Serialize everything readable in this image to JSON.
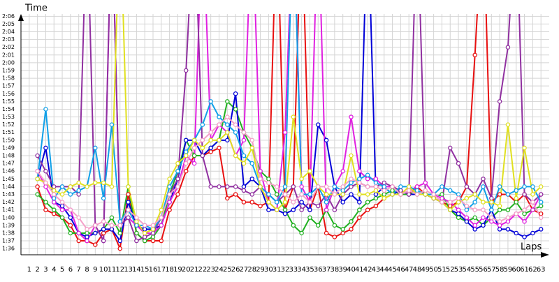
{
  "chart_data": {
    "type": "line",
    "y_label": "Time",
    "x_label": "Laps",
    "x": [
      1,
      2,
      3,
      4,
      5,
      6,
      7,
      8,
      9,
      10,
      11,
      12,
      13,
      14,
      15,
      16,
      17,
      18,
      19,
      20,
      21,
      22,
      23,
      24,
      25,
      26,
      27,
      28,
      29,
      30,
      31,
      32,
      33,
      34,
      35,
      36,
      37,
      38,
      39,
      40,
      41,
      42,
      43,
      44,
      45,
      46,
      47,
      48,
      49,
      50,
      51,
      52,
      53,
      54,
      55,
      56,
      57,
      58,
      59,
      60,
      61,
      62,
      63
    ],
    "xlim": [
      0,
      64
    ],
    "xticks": [
      1,
      2,
      3,
      4,
      5,
      6,
      7,
      8,
      9,
      10,
      11,
      12,
      13,
      14,
      15,
      16,
      17,
      18,
      19,
      20,
      21,
      22,
      23,
      24,
      25,
      26,
      27,
      28,
      29,
      30,
      31,
      32,
      33,
      34,
      35,
      36,
      37,
      38,
      39,
      40,
      41,
      42,
      43,
      44,
      45,
      46,
      47,
      48,
      49,
      50,
      51,
      52,
      53,
      54,
      55,
      56,
      57,
      58,
      59,
      60,
      61,
      62,
      63
    ],
    "ylim": [
      95.2,
      126.3
    ],
    "yticks": [
      {
        "value": 96,
        "label": "1:36"
      },
      {
        "value": 97,
        "label": "1:37"
      },
      {
        "value": 98,
        "label": "1:38"
      },
      {
        "value": 99,
        "label": "1:39"
      },
      {
        "value": 100,
        "label": "1:40"
      },
      {
        "value": 101,
        "label": "1:41"
      },
      {
        "value": 102,
        "label": "1:42"
      },
      {
        "value": 103,
        "label": "1:43"
      },
      {
        "value": 104,
        "label": "1:44"
      },
      {
        "value": 105,
        "label": "1:45"
      },
      {
        "value": 106,
        "label": "1:46"
      },
      {
        "value": 107,
        "label": "1:47"
      },
      {
        "value": 108,
        "label": "1:48"
      },
      {
        "value": 109,
        "label": "1:49"
      },
      {
        "value": 110,
        "label": "1:50"
      },
      {
        "value": 111,
        "label": "1:51"
      },
      {
        "value": 112,
        "label": "1:52"
      },
      {
        "value": 113,
        "label": "1:53"
      },
      {
        "value": 114,
        "label": "1:54"
      },
      {
        "value": 115,
        "label": "1:55"
      },
      {
        "value": 116,
        "label": "1:56"
      },
      {
        "value": 117,
        "label": "1:57"
      },
      {
        "value": 118,
        "label": "1:58"
      },
      {
        "value": 119,
        "label": "1:59"
      },
      {
        "value": 120,
        "label": "2:00"
      },
      {
        "value": 121,
        "label": "2:01"
      },
      {
        "value": 122,
        "label": "2:02"
      },
      {
        "value": 123,
        "label": "2:03"
      },
      {
        "value": 124,
        "label": "2:04"
      },
      {
        "value": 125,
        "label": "2:05"
      },
      {
        "value": 126,
        "label": "2:06"
      }
    ],
    "grid": true,
    "series": [
      {
        "color": "#e81010",
        "values": [
          null,
          104,
          101,
          100.5,
          100,
          99,
          97,
          97,
          96.5,
          98,
          98.5,
          96,
          103,
          98,
          97,
          97,
          97,
          101,
          103,
          106,
          108,
          108,
          108.5,
          109,
          102.5,
          103,
          102,
          102,
          101.5,
          102,
          140,
          101,
          104,
          140,
          101,
          104,
          98,
          97.5,
          98,
          98.5,
          100,
          101,
          101.5,
          102.5,
          103,
          103,
          103,
          104,
          103,
          102.5,
          102,
          101.5,
          102,
          104,
          121,
          140,
          102,
          103,
          103,
          102,
          103,
          101,
          100.5
        ]
      },
      {
        "color": "#20b020",
        "values": [
          null,
          103,
          102,
          101,
          100,
          98,
          98,
          98,
          98,
          98.5,
          100,
          98,
          104,
          98,
          97,
          97.5,
          99,
          103,
          106,
          110,
          108,
          108,
          109,
          110,
          115,
          114,
          111,
          109,
          106,
          105,
          103,
          101,
          99,
          98,
          100,
          99,
          101,
          99,
          98.5,
          99.5,
          101,
          102,
          102.5,
          103,
          103.5,
          103,
          103,
          103.5,
          103,
          102.5,
          103,
          101,
          100,
          99.5,
          100,
          99,
          100,
          101,
          101,
          102,
          100.5,
          101,
          101.5
        ]
      },
      {
        "color": "#0000d8",
        "values": [
          null,
          105,
          109,
          102,
          101.5,
          100,
          98,
          97.5,
          98,
          98.5,
          98.5,
          97,
          102,
          99,
          98.5,
          98.5,
          99,
          102,
          105,
          110,
          110,
          108,
          109,
          110,
          110,
          116,
          104,
          105,
          104,
          101,
          101,
          100.5,
          101,
          102,
          101,
          112,
          110,
          104,
          102,
          103,
          102,
          140,
          103,
          104,
          103,
          103.5,
          103,
          103,
          103,
          102.5,
          102,
          101,
          100.5,
          99.5,
          98.5,
          99,
          101,
          98.5,
          98.5,
          98,
          97.5,
          98,
          98.5
        ]
      },
      {
        "color": "#e020e0",
        "values": [
          null,
          106,
          104,
          102,
          101,
          101,
          98,
          97,
          99,
          97,
          140,
          99,
          100,
          99,
          98,
          98,
          99,
          102,
          104,
          108,
          107,
          140,
          110,
          112,
          111,
          108,
          110,
          140,
          106,
          102,
          101,
          111,
          140,
          104,
          102,
          140,
          101,
          104,
          106,
          113,
          106,
          105,
          105,
          104,
          104,
          103,
          103.5,
          104,
          104.5,
          103,
          102.5,
          102,
          101,
          100,
          99,
          100,
          99.5,
          99,
          99.5,
          100.5,
          99.5,
          101,
          103
        ]
      },
      {
        "color": "#9030a0",
        "values": [
          null,
          108,
          106,
          104,
          104,
          104,
          103,
          140,
          99,
          97,
          140,
          99,
          100,
          97,
          97.5,
          98,
          100,
          103,
          105,
          119,
          140,
          108,
          104,
          104,
          104,
          104,
          103.5,
          103,
          104,
          103,
          102,
          103,
          104,
          101,
          102,
          101.5,
          103,
          101,
          103,
          104,
          104.5,
          104,
          104,
          104.5,
          104,
          103.5,
          103,
          140,
          103,
          102.5,
          102,
          109,
          107,
          104,
          103,
          105,
          102.5,
          115,
          122,
          140,
          103,
          102,
          103
        ]
      },
      {
        "color": "#10a0e8",
        "values": [
          null,
          105,
          114,
          102.5,
          104,
          103,
          103.5,
          104,
          109,
          102.5,
          112,
          99.5,
          101,
          99,
          99,
          98.5,
          100,
          104,
          106,
          108.5,
          110,
          112,
          115,
          113,
          112,
          111,
          108,
          107,
          104,
          103,
          102,
          104,
          140,
          103,
          103,
          104,
          102,
          104,
          103.5,
          104.5,
          105,
          105.5,
          104.5,
          104,
          103,
          104,
          104,
          103.5,
          103,
          103,
          104,
          103.5,
          103,
          101,
          102,
          104,
          101,
          104,
          103,
          103.5,
          104,
          104,
          102
        ]
      },
      {
        "color": "#e0e020",
        "values": [
          null,
          105,
          104.5,
          103.5,
          103,
          104,
          104.5,
          104,
          104.5,
          104.5,
          104,
          140,
          104,
          99.5,
          98,
          98.5,
          101,
          105,
          107,
          108,
          110,
          109,
          110,
          110,
          111,
          108,
          107,
          109,
          104,
          102,
          101,
          102,
          113,
          105,
          106,
          104,
          103,
          103,
          103,
          108,
          103,
          103,
          103.5,
          102.5,
          103,
          103,
          104,
          103,
          103,
          102.5,
          102,
          101,
          102,
          102.5,
          103,
          102,
          102,
          101.5,
          112,
          102.5,
          109,
          103,
          104
        ]
      },
      {
        "color": "#f4a0c8",
        "values": [
          null,
          106,
          104.5,
          103,
          102,
          101,
          100,
          98.5,
          99,
          99.5,
          99,
          99,
          101,
          100,
          99,
          99,
          100,
          103,
          104,
          107,
          109,
          110,
          111,
          112,
          113,
          112,
          111,
          110,
          105,
          104.5,
          104,
          103,
          102,
          103,
          102,
          104,
          104,
          103,
          104,
          105,
          104.5,
          104,
          104,
          103.5,
          104,
          103,
          103.5,
          103,
          103.5,
          103,
          102,
          102,
          102.5,
          101.5,
          101,
          101,
          100,
          99.5,
          100,
          100.5,
          101,
          102,
          100
        ]
      }
    ]
  }
}
